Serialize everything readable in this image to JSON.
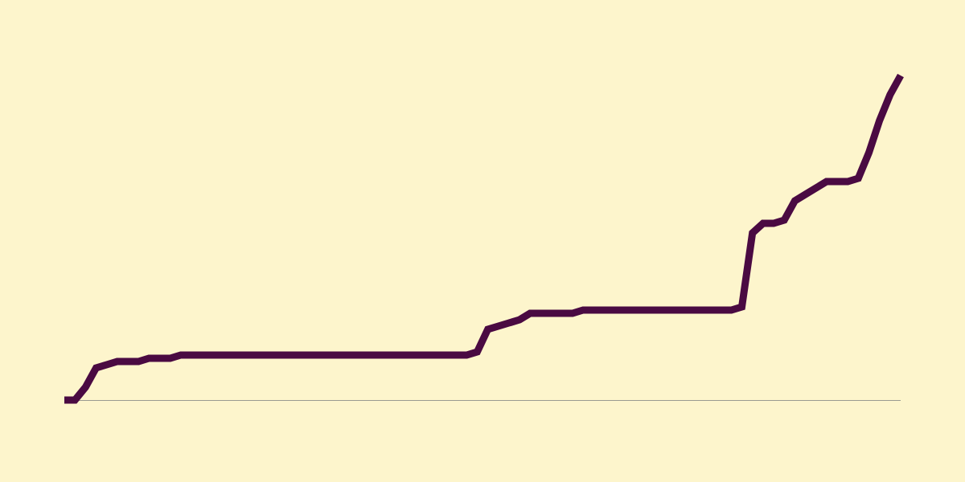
{
  "colors": {
    "background": "#fdf5cc",
    "line": "#4a0a42",
    "baseline": "#9a9a90"
  },
  "chart_data": {
    "type": "line",
    "title": "",
    "xlabel": "",
    "ylabel": "",
    "grid": false,
    "legend": "none",
    "x": [
      0,
      1,
      2,
      3,
      4,
      5,
      6,
      7,
      8,
      9,
      10,
      11,
      12,
      13,
      14,
      15,
      16,
      17,
      18,
      19,
      20,
      21,
      22,
      23,
      24,
      25,
      26,
      27,
      28,
      29,
      30,
      31,
      32,
      33,
      34,
      35,
      36,
      37,
      38,
      39,
      40,
      41,
      42,
      43,
      44,
      45,
      46,
      47,
      48,
      49,
      50,
      51,
      52,
      53,
      54,
      55,
      56,
      57,
      58,
      59,
      60,
      61,
      62,
      63,
      64,
      65,
      66,
      67,
      68,
      69,
      70,
      71,
      72,
      73,
      74,
      75,
      76,
      77,
      78,
      79
    ],
    "xlim": [
      0,
      79
    ],
    "ylim": [
      0,
      100
    ],
    "series": [
      {
        "values": [
          0,
          0,
          4,
          10,
          11,
          12,
          12,
          12,
          13,
          13,
          13,
          14,
          14,
          14,
          14,
          14,
          14,
          14,
          14,
          14,
          14,
          14,
          14,
          14,
          14,
          14,
          14,
          14,
          14,
          14,
          14,
          14,
          14,
          14,
          14,
          14,
          14,
          14,
          14,
          15,
          22,
          23,
          24,
          25,
          27,
          27,
          27,
          27,
          27,
          28,
          28,
          28,
          28,
          28,
          28,
          28,
          28,
          28,
          28,
          28,
          28,
          28,
          28,
          28,
          29,
          52,
          55,
          55,
          56,
          62,
          64,
          66,
          68,
          68,
          68,
          69,
          77,
          87,
          95,
          101
        ]
      }
    ]
  }
}
